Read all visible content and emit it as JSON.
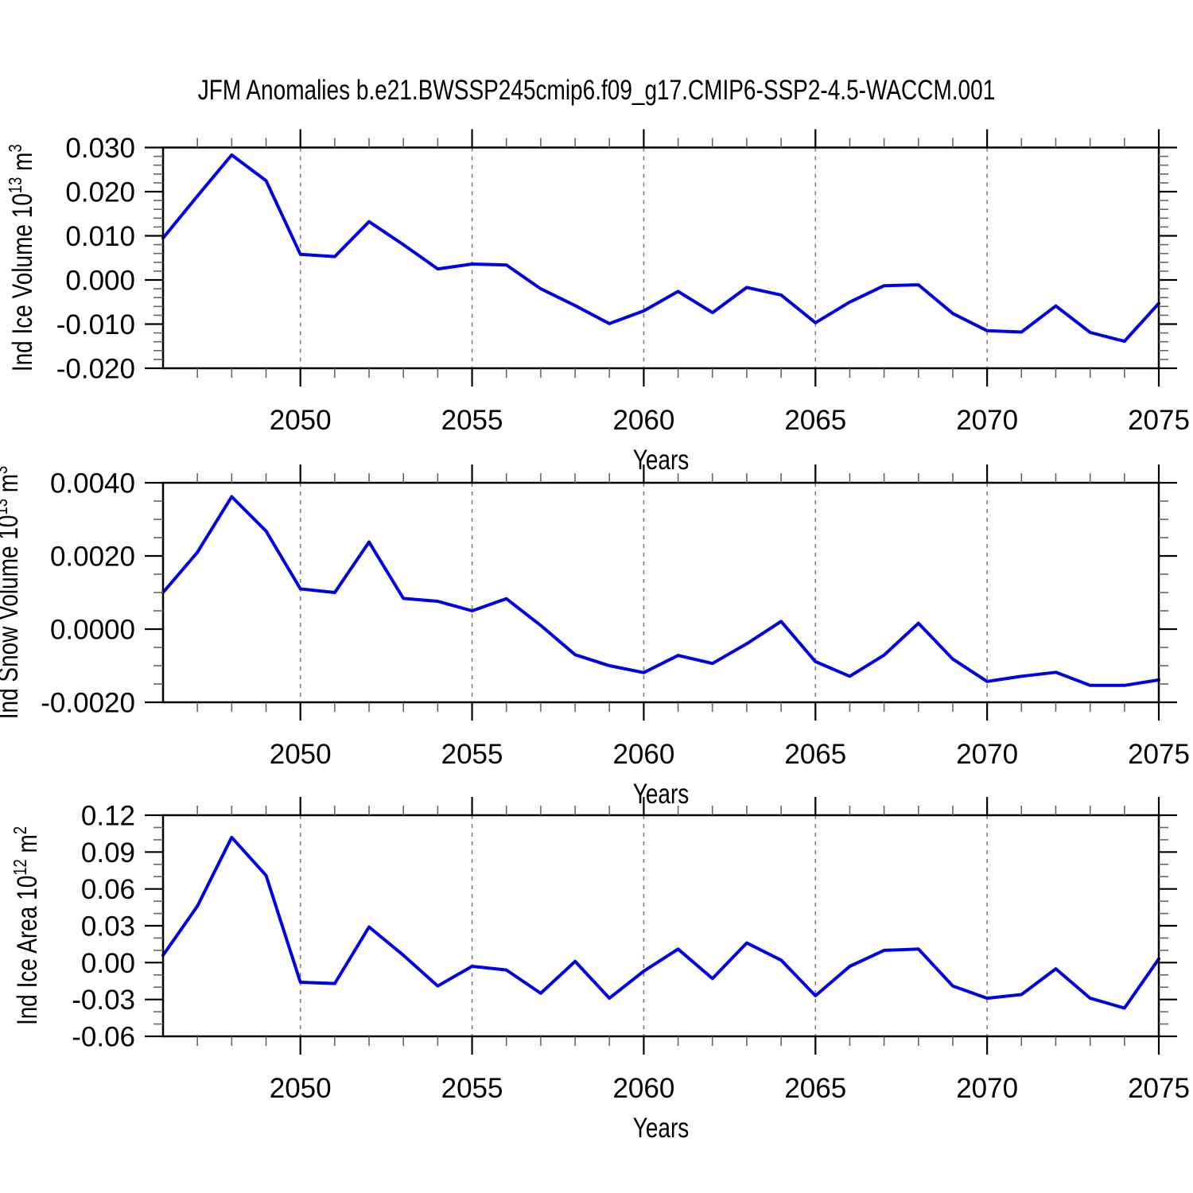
{
  "title": "JFM Anomalies b.e21.BWSSP245cmip6.f09_g17.CMIP6-SSP2-4.5-WACCM.001",
  "colors": {
    "background": "#ffffff",
    "line": "#0000e6",
    "frame": "#000000",
    "major_tick": "#000000",
    "minor_tick": "#666666",
    "grid": "#7f7f7f",
    "text": "#000000"
  },
  "chart_data": [
    {
      "type": "line",
      "ylabel": "Ind Ice Volume 10^13 m^3",
      "ylabel_parts": [
        {
          "t": "Ind Ice Volume 10",
          "sup": false
        },
        {
          "t": "13",
          "sup": true
        },
        {
          "t": " m",
          "sup": false
        },
        {
          "t": "3",
          "sup": true
        }
      ],
      "xlabel": "Years",
      "x_start": 2046,
      "x_end": 2075,
      "x_step": 1,
      "values": [
        0.0095,
        0.019,
        0.0283,
        0.0225,
        0.0058,
        0.0053,
        0.0132,
        0.008,
        0.0025,
        0.0036,
        0.0034,
        -0.002,
        -0.0058,
        -0.0099,
        -0.007,
        -0.0026,
        -0.0074,
        -0.0017,
        -0.0034,
        -0.0097,
        -0.005,
        -0.0013,
        -0.0011,
        -0.0076,
        -0.0115,
        -0.0118,
        -0.0059,
        -0.0119,
        -0.0139,
        -0.0053
      ],
      "ylim": [
        -0.02,
        0.03
      ],
      "ymajor_step": 0.01,
      "yminor_step": 0.002,
      "ytick_values": [
        0.03,
        0.02,
        0.01,
        0.0,
        -0.01,
        -0.02
      ],
      "ytick_labels": [
        "0.030",
        "0.020",
        "0.010",
        "0.000",
        "-0.010",
        "-0.020"
      ],
      "xticks": [
        2050,
        2055,
        2060,
        2065,
        2070,
        2075
      ],
      "xtick_labels": [
        "2050",
        "2055",
        "2060",
        "2065",
        "2070",
        "2075"
      ],
      "grid_years": [
        2050,
        2055,
        2060,
        2065,
        2070
      ],
      "grid": "vertical-dashed",
      "legend": "none"
    },
    {
      "type": "line",
      "ylabel": "Ind Snow Volume 10^13 m^3",
      "ylabel_parts": [
        {
          "t": "Ind Snow Volume 10",
          "sup": false
        },
        {
          "t": "13",
          "sup": true
        },
        {
          "t": " m",
          "sup": false
        },
        {
          "t": "3",
          "sup": true
        }
      ],
      "xlabel": "Years",
      "x_start": 2046,
      "x_end": 2075,
      "x_step": 1,
      "values": [
        0.001,
        0.0021,
        0.00362,
        0.00268,
        0.0011,
        0.001,
        0.00238,
        0.00084,
        0.00076,
        0.0005,
        0.00083,
        0.0001,
        -0.0007,
        -0.001,
        -0.00119,
        -0.00072,
        -0.00094,
        -0.0004,
        0.00021,
        -0.00089,
        -0.00129,
        -0.00071,
        0.00016,
        -0.00082,
        -0.00143,
        -0.00129,
        -0.00118,
        -0.00154,
        -0.00154,
        -0.00139
      ],
      "ylim": [
        -0.002,
        0.004
      ],
      "ymajor_step": 0.002,
      "yminor_step": 0.0005,
      "ytick_values": [
        0.004,
        0.002,
        0.0,
        -0.002
      ],
      "ytick_labels": [
        "0.0040",
        "0.0020",
        "0.0000",
        "-0.0020"
      ],
      "xticks": [
        2050,
        2055,
        2060,
        2065,
        2070,
        2075
      ],
      "xtick_labels": [
        "2050",
        "2055",
        "2060",
        "2065",
        "2070",
        "2075"
      ],
      "grid_years": [
        2050,
        2055,
        2060,
        2065,
        2070
      ],
      "grid": "vertical-dashed",
      "legend": "none"
    },
    {
      "type": "line",
      "ylabel": "Ind Ice Area 10^12 m^2",
      "ylabel_parts": [
        {
          "t": "Ind Ice Area 10",
          "sup": false
        },
        {
          "t": "12",
          "sup": true
        },
        {
          "t": " m",
          "sup": false
        },
        {
          "t": "2",
          "sup": true
        }
      ],
      "xlabel": "Years",
      "x_start": 2046,
      "x_end": 2075,
      "x_step": 1,
      "values": [
        0.006,
        0.046,
        0.102,
        0.071,
        -0.016,
        -0.017,
        0.029,
        0.006,
        -0.019,
        -0.003,
        -0.006,
        -0.025,
        0.001,
        -0.029,
        -0.007,
        0.011,
        -0.013,
        0.016,
        0.002,
        -0.027,
        -0.003,
        0.01,
        0.011,
        -0.019,
        -0.029,
        -0.026,
        -0.005,
        -0.029,
        -0.037,
        0.003
      ],
      "ylim": [
        -0.06,
        0.12
      ],
      "ymajor_step": 0.03,
      "yminor_step": 0.01,
      "ytick_values": [
        0.12,
        0.09,
        0.06,
        0.03,
        0.0,
        -0.03,
        -0.06
      ],
      "ytick_labels": [
        "0.12",
        "0.09",
        "0.06",
        "0.03",
        "0.00",
        "-0.03",
        "-0.06"
      ],
      "xticks": [
        2050,
        2055,
        2060,
        2065,
        2070,
        2075
      ],
      "xtick_labels": [
        "2050",
        "2055",
        "2060",
        "2065",
        "2070",
        "2075"
      ],
      "grid_years": [
        2050,
        2055,
        2060,
        2065,
        2070
      ],
      "grid": "vertical-dashed",
      "legend": "none"
    }
  ]
}
